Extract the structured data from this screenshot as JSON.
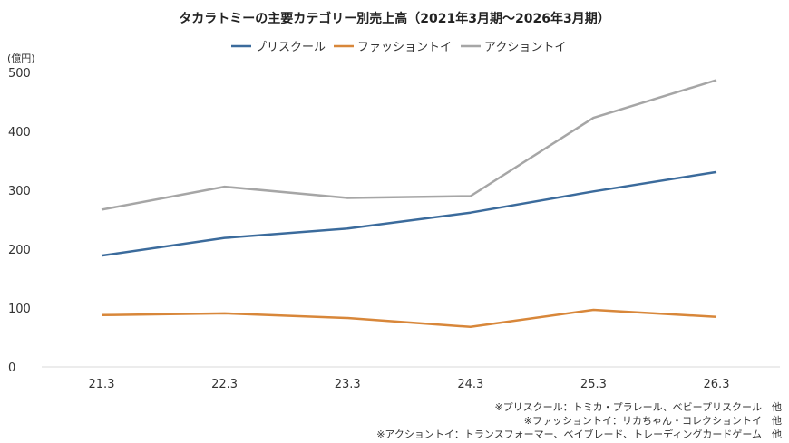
{
  "chart_data": {
    "type": "line",
    "title": "タカラトミーの主要カテゴリー別売上高（2021年3月期～2026年3月期）",
    "unit_label": "(億円)",
    "categories": [
      "21.3",
      "22.3",
      "23.3",
      "24.3",
      "25.3",
      "26.3"
    ],
    "series": [
      {
        "name": "プリスクール",
        "color": "#3b6b9c",
        "values": [
          189,
          219,
          235,
          262,
          298,
          331
        ]
      },
      {
        "name": "ファッショントイ",
        "color": "#d8873a",
        "values": [
          88,
          91,
          83,
          68,
          97,
          85
        ]
      },
      {
        "name": "アクショントイ",
        "color": "#a6a6a6",
        "values": [
          267,
          306,
          287,
          290,
          423,
          487
        ]
      }
    ],
    "ylim": [
      0,
      500
    ],
    "yticks": [
      "0",
      "100",
      "200",
      "300",
      "400",
      "500"
    ],
    "grid": false,
    "legend_position": "top-center",
    "notes": [
      "※プリスクール：トミカ・プラレール、ベビープリスクール　他",
      "※ファッショントイ：リカちゃん・コレクショントイ　他",
      "※アクショントイ：トランスフォーマー、ベイブレード、トレーディングカードゲーム　他"
    ]
  }
}
